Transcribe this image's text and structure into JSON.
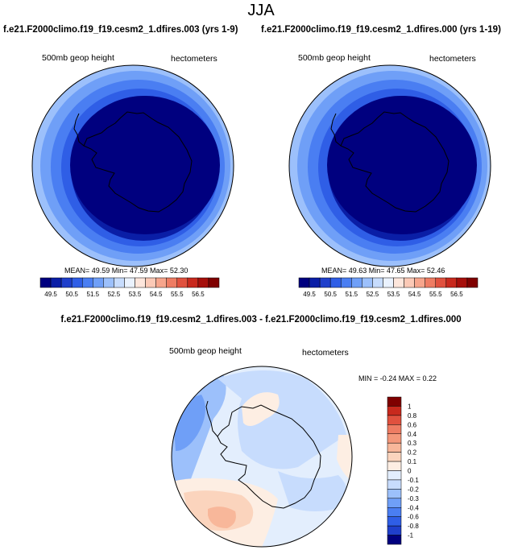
{
  "season": "JJA",
  "panels": [
    {
      "title": "f.e21.F2000climo.f19_f19.cesm2_1.dfires.003 (yrs 1-9)",
      "variable": "500mb geop height",
      "units": "hectometers",
      "stats": "MEAN=  49.59  Min=  47.59  Max=  52.30"
    },
    {
      "title": "f.e21.F2000climo.f19_f19.cesm2_1.dfires.000 (yrs 1-19)",
      "variable": "500mb geop height",
      "units": "hectometers",
      "stats": "MEAN=  49.63  Min=  47.65  Max=  52.46"
    }
  ],
  "difference": {
    "title": "f.e21.F2000climo.f19_f19.cesm2_1.dfires.003 - f.e21.F2000climo.f19_f19.cesm2_1.dfires.000",
    "variable": "500mb geop height",
    "units": "hectometers",
    "stats": "MIN =  -0.24 MAX =   0.22"
  },
  "colors": {
    "mean_colors": [
      "#00007f",
      "#0a1ea6",
      "#1f3fcb",
      "#2f5ee6",
      "#4a7ef2",
      "#6f9ff7",
      "#9cc0fb",
      "#c7dcfd",
      "#eaf2fe",
      "#fde6dc",
      "#fbc9b6",
      "#f6a58c",
      "#ee7c63",
      "#e0513e",
      "#c8291d",
      "#a60f0b",
      "#7f0000"
    ],
    "diff_colors": [
      "#00007f",
      "#1f3fcb",
      "#2f5ee6",
      "#4a7ef2",
      "#6f9ff7",
      "#9cc0fb",
      "#c7dcfd",
      "#e3eefd",
      "#fdeee3",
      "#fbd4bd",
      "#f8b79a",
      "#f4977a",
      "#ee7c63",
      "#e0513e",
      "#c8291d",
      "#7f0000"
    ]
  },
  "chart_data": [
    {
      "type": "heatmap",
      "projection": "south polar stereographic",
      "title": "f.e21.F2000climo.f19_f19.cesm2_1.dfires.003 (yrs 1-9)",
      "field": "500mb geop height",
      "units": "hectometers",
      "mean": 49.59,
      "min": 47.59,
      "max": 52.3,
      "colorbar_ticks": [
        "49.5",
        "50.5",
        "51.5",
        "52.5",
        "53.5",
        "54.5",
        "55.5",
        "56.5"
      ]
    },
    {
      "type": "heatmap",
      "projection": "south polar stereographic",
      "title": "f.e21.F2000climo.f19_f19.cesm2_1.dfires.000 (yrs 1-19)",
      "field": "500mb geop height",
      "units": "hectometers",
      "mean": 49.63,
      "min": 47.65,
      "max": 52.46,
      "colorbar_ticks": [
        "49.5",
        "50.5",
        "51.5",
        "52.5",
        "53.5",
        "54.5",
        "55.5",
        "56.5"
      ]
    },
    {
      "type": "heatmap",
      "projection": "south polar stereographic",
      "title": "f.e21.F2000climo.f19_f19.cesm2_1.dfires.003 - f.e21.F2000climo.f19_f19.cesm2_1.dfires.000",
      "field": "500mb geop height",
      "units": "hectometers",
      "min": -0.24,
      "max": 0.22,
      "colorbar_ticks": [
        "1",
        "0.8",
        "0.6",
        "0.4",
        "0.3",
        "0.2",
        "0.1",
        "0",
        "-0.1",
        "-0.2",
        "-0.3",
        "-0.4",
        "-0.6",
        "-0.8",
        "-1"
      ]
    }
  ]
}
